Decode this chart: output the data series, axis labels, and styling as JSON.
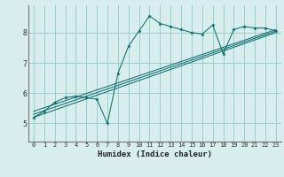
{
  "xlabel": "Humidex (Indice chaleur)",
  "bg_color": "#d8eeec",
  "grid_color": "#9ecfcc",
  "line_color": "#006666",
  "x_ticks": [
    0,
    1,
    2,
    3,
    4,
    5,
    6,
    7,
    8,
    9,
    10,
    11,
    12,
    13,
    14,
    15,
    16,
    17,
    18,
    19,
    20,
    21,
    22,
    23
  ],
  "y_ticks": [
    5,
    6,
    7,
    8
  ],
  "ylim": [
    4.4,
    8.9
  ],
  "xlim": [
    -0.5,
    23.5
  ],
  "series1_x": [
    0,
    1,
    2,
    3,
    4,
    5,
    6,
    7,
    8,
    9,
    10,
    11,
    12,
    13,
    14,
    15,
    16,
    17,
    18,
    19,
    20,
    21,
    22,
    23
  ],
  "series1_y": [
    5.2,
    5.4,
    5.7,
    5.85,
    5.9,
    5.85,
    5.8,
    5.0,
    6.65,
    7.55,
    8.05,
    8.55,
    8.3,
    8.2,
    8.1,
    8.0,
    7.95,
    8.25,
    7.3,
    8.1,
    8.2,
    8.15,
    8.15,
    8.05
  ],
  "series2_x": [
    0,
    23
  ],
  "series2_y": [
    5.2,
    8.0
  ],
  "series3_x": [
    0,
    23
  ],
  "series3_y": [
    5.3,
    8.05
  ],
  "series4_x": [
    0,
    23
  ],
  "series4_y": [
    5.4,
    8.1
  ]
}
